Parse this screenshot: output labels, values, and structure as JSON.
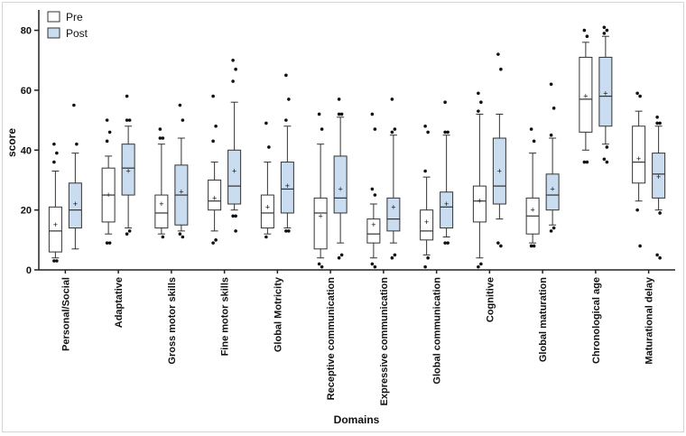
{
  "chart_data": {
    "type": "boxplot",
    "title": "",
    "xlabel": "Domains",
    "ylabel": "score",
    "ylim": [
      0,
      85
    ],
    "yticks": [
      0,
      20,
      40,
      60,
      80
    ],
    "grid": false,
    "legend_position": "top-left",
    "colors": {
      "Pre": "#ffffff",
      "Post": "#c9dcf0",
      "stroke": "#333333"
    },
    "categories": [
      "Personal/Social",
      "Adaptative",
      "Gross motor skills",
      "Fine motor skills",
      "Global Motricity",
      "Receptive communication",
      "Expressive communication",
      "Global communication",
      "Cognitive",
      "Global maturation",
      "Chronological age",
      "Maturational delay"
    ],
    "series": [
      {
        "name": "Pre",
        "boxes": [
          {
            "min": 4,
            "q1": 6,
            "median": 13,
            "q3": 21,
            "max": 33,
            "mean": 15,
            "outliers": [
              42,
              39,
              36,
              3,
              3
            ]
          },
          {
            "min": 12,
            "q1": 16,
            "median": 25,
            "q3": 34,
            "max": 38,
            "mean": 25,
            "outliers": [
              50,
              46,
              43,
              9,
              9
            ]
          },
          {
            "min": 12,
            "q1": 14,
            "median": 19,
            "q3": 25,
            "max": 42,
            "mean": 22,
            "outliers": [
              47,
              44,
              44,
              11
            ]
          },
          {
            "min": 13,
            "q1": 20,
            "median": 23,
            "q3": 30,
            "max": 36,
            "mean": 24,
            "outliers": [
              58,
              48,
              43,
              10,
              9
            ]
          },
          {
            "min": 12,
            "q1": 14,
            "median": 19,
            "q3": 25,
            "max": 36,
            "mean": 21,
            "outliers": [
              49,
              41,
              11
            ]
          },
          {
            "min": 4,
            "q1": 7,
            "median": 19,
            "q3": 24,
            "max": 42,
            "mean": 18,
            "outliers": [
              52,
              47,
              2,
              1
            ]
          },
          {
            "min": 4,
            "q1": 9,
            "median": 12,
            "q3": 17,
            "max": 22,
            "mean": 15,
            "outliers": [
              52,
              47,
              27,
              25,
              2,
              1
            ]
          },
          {
            "min": 5,
            "q1": 10,
            "median": 13,
            "q3": 20,
            "max": 31,
            "mean": 16,
            "outliers": [
              48,
              46,
              33,
              4,
              1
            ]
          },
          {
            "min": 4,
            "q1": 16,
            "median": 23,
            "q3": 28,
            "max": 52,
            "mean": 23,
            "outliers": [
              59,
              56,
              53,
              2,
              1
            ]
          },
          {
            "min": 9,
            "q1": 12,
            "median": 18,
            "q3": 24,
            "max": 39,
            "mean": 20,
            "outliers": [
              47,
              43,
              8,
              8
            ]
          },
          {
            "min": 40,
            "q1": 46,
            "median": 57,
            "q3": 71,
            "max": 76,
            "mean": 58,
            "outliers": [
              80,
              78,
              36,
              36
            ]
          },
          {
            "min": 23,
            "q1": 29,
            "median": 36,
            "q3": 48,
            "max": 53,
            "mean": 37,
            "outliers": [
              59,
              58,
              20,
              8
            ]
          }
        ]
      },
      {
        "name": "Post",
        "boxes": [
          {
            "min": 7,
            "q1": 14,
            "median": 20,
            "q3": 29,
            "max": 39,
            "mean": 22,
            "outliers": [
              55,
              42
            ]
          },
          {
            "min": 14,
            "q1": 25,
            "median": 34,
            "q3": 42,
            "max": 48,
            "mean": 33,
            "outliers": [
              58,
              50,
              50,
              13,
              12
            ]
          },
          {
            "min": 13,
            "q1": 15,
            "median": 25,
            "q3": 35,
            "max": 44,
            "mean": 26,
            "outliers": [
              55,
              50,
              12,
              11
            ]
          },
          {
            "min": 20,
            "q1": 22,
            "median": 28,
            "q3": 40,
            "max": 56,
            "mean": 33,
            "outliers": [
              70,
              67,
              63,
              18,
              18,
              13
            ]
          },
          {
            "min": 14,
            "q1": 19,
            "median": 27,
            "q3": 36,
            "max": 48,
            "mean": 28,
            "outliers": [
              65,
              57,
              50,
              13,
              13
            ]
          },
          {
            "min": 9,
            "q1": 19,
            "median": 24,
            "q3": 38,
            "max": 51,
            "mean": 27,
            "outliers": [
              57,
              52,
              52,
              5,
              4
            ]
          },
          {
            "min": 9,
            "q1": 13,
            "median": 17,
            "q3": 24,
            "max": 45,
            "mean": 21,
            "outliers": [
              57,
              47,
              46,
              5,
              4
            ]
          },
          {
            "min": 11,
            "q1": 14,
            "median": 21,
            "q3": 26,
            "max": 45,
            "mean": 22,
            "outliers": [
              56,
              46,
              46,
              9,
              9
            ]
          },
          {
            "min": 17,
            "q1": 22,
            "median": 28,
            "q3": 44,
            "max": 52,
            "mean": 33,
            "outliers": [
              72,
              67,
              9,
              8
            ]
          },
          {
            "min": 15,
            "q1": 20,
            "median": 25,
            "q3": 32,
            "max": 44,
            "mean": 27,
            "outliers": [
              62,
              54,
              45,
              14,
              13
            ]
          },
          {
            "min": 42,
            "q1": 48,
            "median": 58,
            "q3": 71,
            "max": 78,
            "mean": 59,
            "outliers": [
              81,
              80,
              79,
              41,
              37,
              36
            ]
          },
          {
            "min": 20,
            "q1": 24,
            "median": 32,
            "q3": 39,
            "max": 48,
            "mean": 31,
            "outliers": [
              51,
              49,
              49,
              19,
              5,
              4
            ]
          }
        ]
      }
    ]
  }
}
